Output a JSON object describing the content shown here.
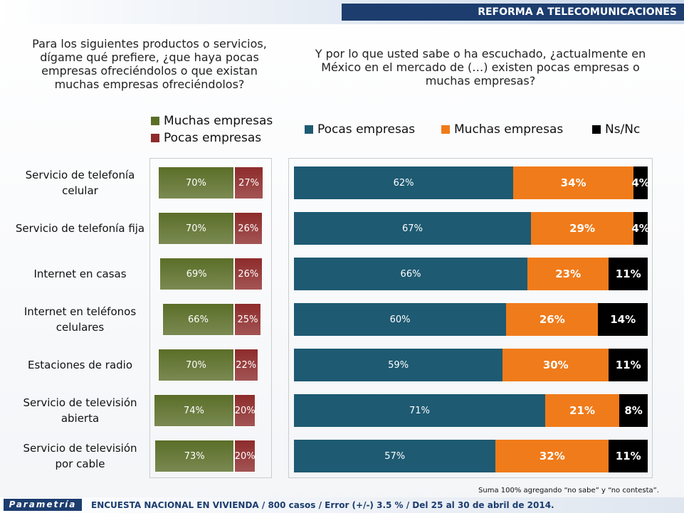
{
  "header": {
    "title": "REFORMA A TELECOMUNICACIONES"
  },
  "questions": [
    "Para los siguientes productos o servicios, dígame qué prefiere, ¿que haya pocas empresas ofreciéndolos o que existan muchas empresas ofreciéndolos?",
    "Y por lo que usted sabe o ha escuchado, ¿actualmente en México en el mercado de (…) existen pocas empresas o muchas empresas?"
  ],
  "note": "Suma 100% agregando “no sabe” y “no contesta”.",
  "footer": {
    "brand": "Parametría",
    "text": "ENCUESTA NACIONAL EN VIVIENDA / 800 casos / Error (+/-) 3.5 % / Del 25 al 30 de abril de 2014."
  },
  "chart_data": [
    {
      "type": "diverging_bar",
      "xlim": [
        -70,
        40
      ],
      "categories": [
        "Servicio de telefonía celular",
        "Servicio de telefonía fija",
        "Internet en casas",
        "Internet en teléfonos celulares",
        "Estaciones de radio",
        "Servicio de televisión abierta",
        "Servicio de televisión por cable"
      ],
      "series": [
        {
          "name": "Muchas empresas",
          "color": "#5b6e28",
          "side": "left",
          "values": [
            70,
            70,
            69,
            66,
            70,
            74,
            73
          ],
          "value_labels": [
            "70%",
            "70%",
            "69%",
            "66%",
            "70%",
            "74%",
            "73%"
          ]
        },
        {
          "name": "Pocas empresas",
          "color": "#8e2b2b",
          "side": "right",
          "values": [
            27,
            26,
            26,
            25,
            22,
            20,
            20
          ],
          "value_labels": [
            "27%",
            "26%",
            "26%",
            "25%",
            "22%",
            "20%",
            "20%"
          ]
        }
      ]
    },
    {
      "type": "stacked_bar",
      "xlim": [
        0,
        100
      ],
      "series": [
        {
          "name": "Pocas empresas",
          "color": "#1e5a72",
          "values": [
            62,
            67,
            66,
            60,
            59,
            71,
            57
          ],
          "value_labels": [
            "62%",
            "67%",
            "66%",
            "60%",
            "59%",
            "71%",
            "57%"
          ]
        },
        {
          "name": "Muchas empresas",
          "color": "#f07b1a",
          "values": [
            34,
            29,
            23,
            26,
            30,
            21,
            32
          ],
          "value_labels": [
            "34%",
            "29%",
            "23%",
            "26%",
            "30%",
            "21%",
            "32%"
          ]
        },
        {
          "name": "Ns/Nc",
          "color": "#000000",
          "values": [
            4,
            4,
            11,
            14,
            11,
            8,
            11
          ],
          "value_labels": [
            "4%",
            "4%",
            "11%",
            "14%",
            "11%",
            "8%",
            "11%"
          ]
        }
      ]
    }
  ]
}
